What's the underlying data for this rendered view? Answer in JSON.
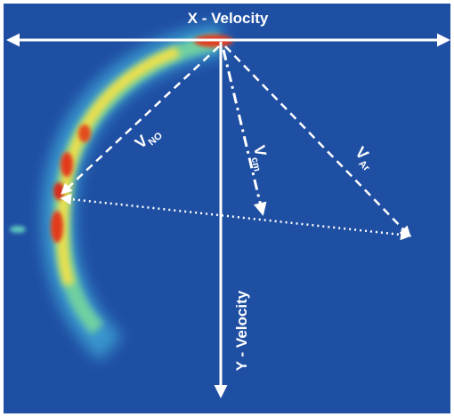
{
  "labels": {
    "x_axis": "X - Velocity",
    "y_axis": "Y - Velocity",
    "v_no": {
      "symbol": "V",
      "subscript": "NO"
    },
    "v_cm": {
      "symbol": "V",
      "subscript": "cm"
    },
    "v_ar": {
      "symbol": "V",
      "subscript": "Ar"
    }
  }
}
